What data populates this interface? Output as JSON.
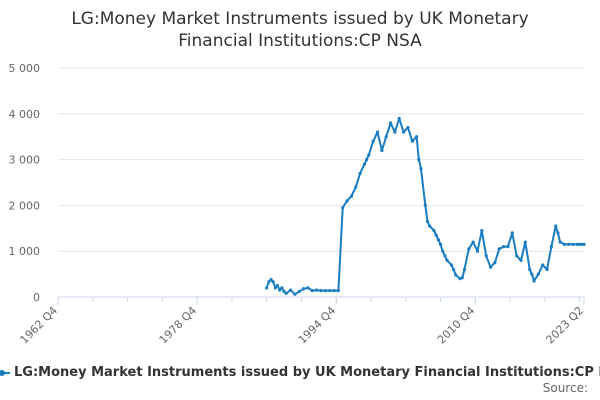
{
  "chart_data": {
    "type": "line",
    "title_lines": [
      "LG:Money Market Instruments issued by UK Monetary",
      "Financial Institutions:CP NSA"
    ],
    "xlabel": "",
    "ylabel": "",
    "x_tick_labels": [
      "1962 Q4",
      "1978 Q4",
      "1994 Q4",
      "2010 Q4",
      "2023 Q2"
    ],
    "y_tick_labels": [
      "0",
      "1 000",
      "2 000",
      "3 000",
      "4 000",
      "5 000"
    ],
    "ylim": [
      0,
      5000
    ],
    "xlim": [
      1962.75,
      2023.25
    ],
    "grid": "horizontal",
    "legend_position": "bottom",
    "color": "#1a7dc1",
    "series": [
      {
        "name": "LG:Money Market Instruments issued by UK Monetary Financial Institutions:CP NSA",
        "x": [
          1986.75,
          1987.0,
          1987.25,
          1987.5,
          1987.75,
          1988.0,
          1988.25,
          1988.5,
          1988.75,
          1989.0,
          1989.5,
          1990.0,
          1990.5,
          1991.0,
          1991.5,
          1992.0,
          1992.5,
          1993.0,
          1993.5,
          1994.0,
          1994.5,
          1995.0,
          1995.5,
          1996.0,
          1996.5,
          1997.0,
          1997.5,
          1998.0,
          1998.25,
          1998.5,
          1999.0,
          1999.5,
          2000.0,
          2000.5,
          2001.0,
          2001.5,
          2002.0,
          2002.5,
          2003.0,
          2003.5,
          2004.0,
          2004.25,
          2004.5,
          2005.0,
          2005.25,
          2005.5,
          2006.0,
          2006.25,
          2006.5,
          2006.75,
          2007.0,
          2007.25,
          2007.5,
          2008.0,
          2008.25,
          2008.5,
          2009.0,
          2009.25,
          2009.5,
          2010.0,
          2010.5,
          2011.0,
          2011.5,
          2012.0,
          2012.5,
          2013.0,
          2013.5,
          2014.0,
          2014.5,
          2015.0,
          2015.5,
          2016.0,
          2016.5,
          2017.0,
          2017.25,
          2017.5,
          2018.0,
          2018.5,
          2019.0,
          2019.5,
          2020.0,
          2020.25,
          2020.5,
          2021.0,
          2021.5,
          2022.0,
          2022.5,
          2022.75,
          2023.0,
          2023.25
        ],
        "y": [
          200,
          330,
          380,
          330,
          200,
          250,
          150,
          200,
          120,
          80,
          150,
          60,
          120,
          180,
          200,
          140,
          150,
          140,
          140,
          140,
          140,
          140,
          1950,
          2100,
          2200,
          2400,
          2700,
          2900,
          3000,
          3100,
          3400,
          3600,
          3200,
          3500,
          3800,
          3600,
          3900,
          3600,
          3700,
          3400,
          3500,
          3000,
          2800,
          2000,
          1650,
          1550,
          1450,
          1350,
          1250,
          1150,
          1000,
          900,
          800,
          700,
          600,
          480,
          400,
          420,
          600,
          1050,
          1200,
          1000,
          1450,
          900,
          650,
          750,
          1050,
          1100,
          1100,
          1400,
          900,
          800,
          1200,
          600,
          500,
          350,
          500,
          700,
          600,
          1100,
          1550,
          1400,
          1200,
          1150,
          1150,
          1150,
          1150,
          1150,
          1150,
          1150
        ]
      }
    ]
  },
  "legend": {
    "label": "LG:Money Market Instruments issued by UK Monetary Financial Institutions:CP NSA"
  },
  "source_label": "Source:"
}
